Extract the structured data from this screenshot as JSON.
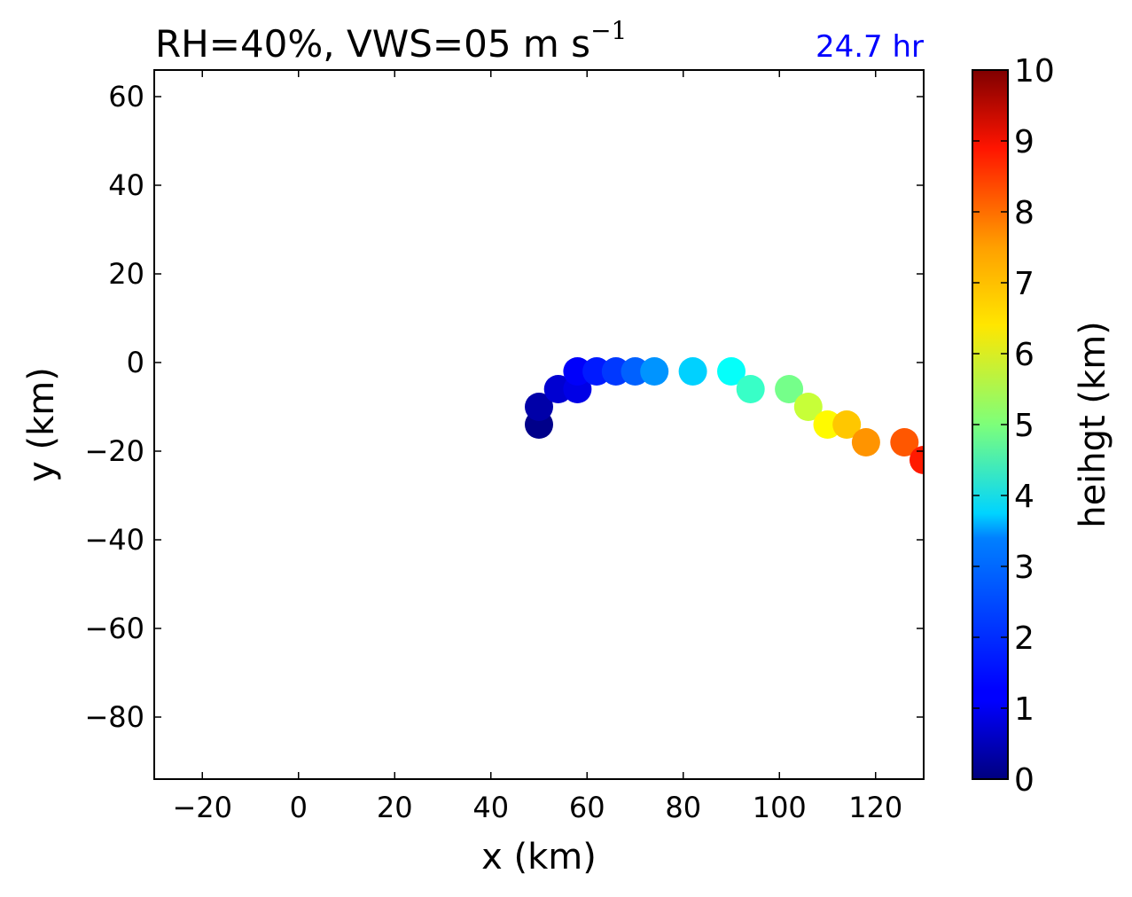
{
  "chart_data": {
    "type": "scatter",
    "title_parts": {
      "main": "RH=40%, VWS=05 m s",
      "superscript": "−1"
    },
    "time_label": "24.7 hr",
    "time_label_color": "#0000ff",
    "xlabel": "x (km)",
    "ylabel": "y (km)",
    "xlim": [
      -30,
      130
    ],
    "ylim": [
      -94,
      66
    ],
    "xticks": [
      -20,
      0,
      20,
      40,
      60,
      80,
      100,
      120
    ],
    "yticks": [
      -80,
      -60,
      -40,
      -20,
      0,
      20,
      40,
      60
    ],
    "colorbar": {
      "label": "heihgt (km)",
      "colormap": "jet",
      "range": [
        0,
        10
      ],
      "ticks": [
        0,
        1,
        2,
        3,
        4,
        5,
        6,
        7,
        8,
        9,
        10
      ]
    },
    "grid": false,
    "points": [
      {
        "x": 50,
        "y": -14,
        "height": 0.1
      },
      {
        "x": 50,
        "y": -10,
        "height": 0.4
      },
      {
        "x": 54,
        "y": -6,
        "height": 0.8
      },
      {
        "x": 58,
        "y": -6,
        "height": 1.0
      },
      {
        "x": 58,
        "y": -2,
        "height": 1.2
      },
      {
        "x": 62,
        "y": -2,
        "height": 1.5
      },
      {
        "x": 66,
        "y": -2,
        "height": 1.8
      },
      {
        "x": 70,
        "y": -2,
        "height": 2.2
      },
      {
        "x": 74,
        "y": -2,
        "height": 2.7
      },
      {
        "x": 82,
        "y": -2,
        "height": 3.3
      },
      {
        "x": 90,
        "y": -2,
        "height": 3.8
      },
      {
        "x": 94,
        "y": -6,
        "height": 4.3
      },
      {
        "x": 102,
        "y": -6,
        "height": 4.9
      },
      {
        "x": 106,
        "y": -10,
        "height": 5.7
      },
      {
        "x": 110,
        "y": -14,
        "height": 6.3
      },
      {
        "x": 114,
        "y": -14,
        "height": 6.8
      },
      {
        "x": 118,
        "y": -18,
        "height": 7.3
      },
      {
        "x": 126,
        "y": -18,
        "height": 7.9
      },
      {
        "x": 130,
        "y": -22,
        "height": 8.5
      }
    ]
  }
}
